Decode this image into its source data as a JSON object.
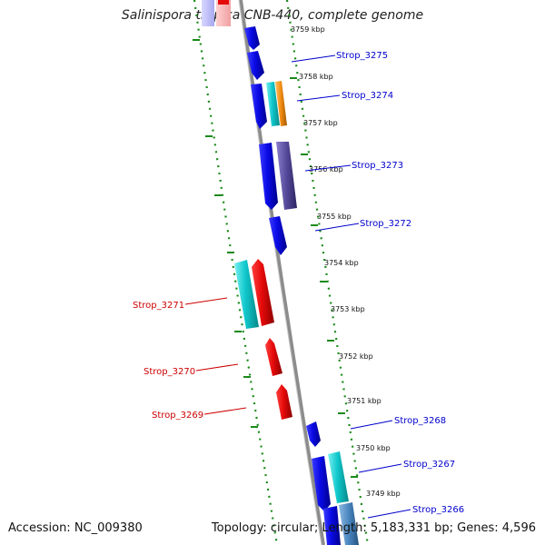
{
  "title": "Salinispora tropica CNB-440, complete genome",
  "footer": {
    "accession": "Accession: NC_009380",
    "topology": "Topology: circular; Length: 5,183,331 bp; Genes: 4,596"
  },
  "colors": {
    "forward_gene": "#0a0ae6",
    "reverse_gene": "#e60a0a",
    "teal_gene": "#10c8cc",
    "orange_gene": "#f08a10",
    "purple_gene": "#54489a",
    "steel_gene": "#4a86c0",
    "backbone": "#8c8c8c",
    "gc_dots": "#1a8a1a",
    "forward_label": "#0000cc",
    "reverse_label": "#cc0000"
  },
  "ticks": [
    "3759 kbp",
    "3758 kbp",
    "3757 kbp",
    "3756 kbp",
    "3755 kbp",
    "3754 kbp",
    "3753 kbp",
    "3752 kbp",
    "3751 kbp",
    "3750 kbp",
    "3749 kbp"
  ],
  "forward_labels": [
    "Strop_3275",
    "Strop_3274",
    "Strop_3273",
    "Strop_3272",
    "Strop_3268",
    "Strop_3267",
    "Strop_3266"
  ],
  "reverse_labels": [
    "Strop_3271",
    "Strop_3270",
    "Strop_3269"
  ]
}
